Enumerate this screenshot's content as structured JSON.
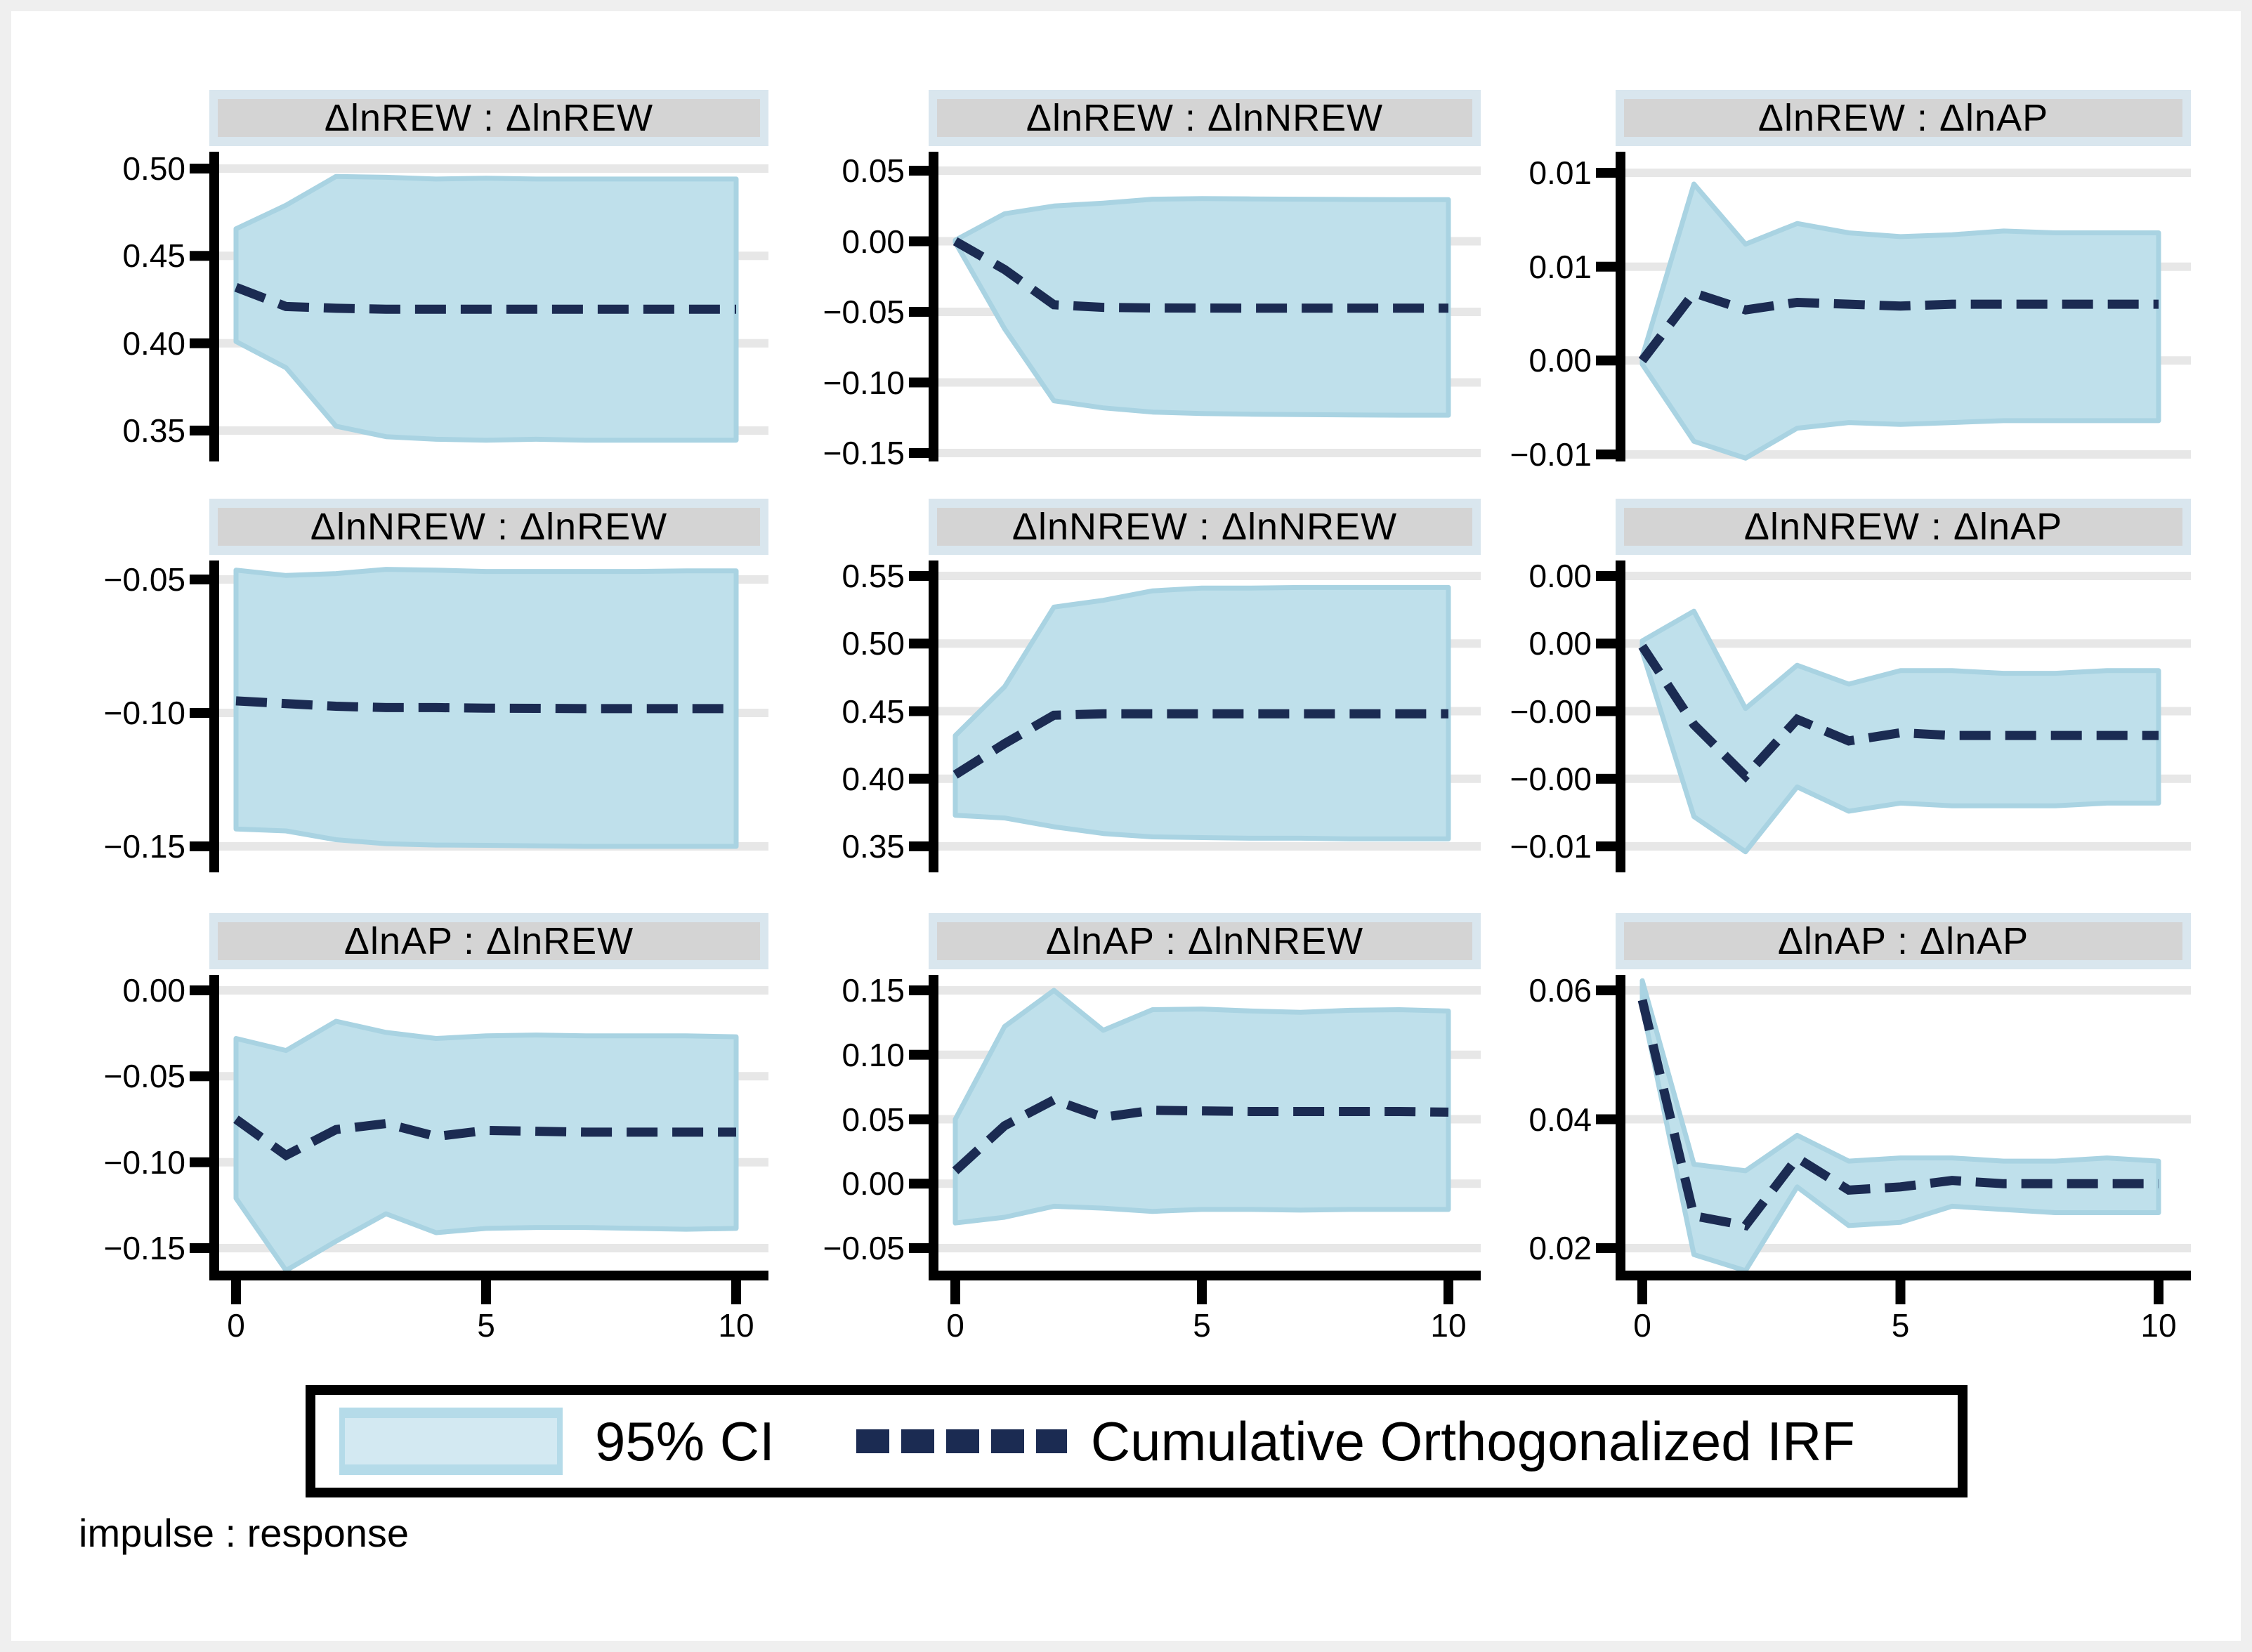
{
  "note": "impulse : response",
  "legend": {
    "ci_label": "95% CI",
    "irf_label": "Cumulative Orthogonalized IRF"
  },
  "colors": {
    "band_fill": "#bfe0eb",
    "band_edge": "#a9d3e2",
    "irf_line": "#1b2b52",
    "header_bg": "#d9e6ee",
    "title_bg": "#d4d4d4",
    "gridline": "#e7e7e7",
    "axis": "#000000",
    "frame": "#efefef",
    "swatch_outer": "#b5dbe9",
    "swatch_inner": "#d3e9f2"
  },
  "xticks": [
    {
      "label": "0",
      "value": 0
    },
    {
      "label": "5",
      "value": 5
    },
    {
      "label": "10",
      "value": 10
    }
  ],
  "xlim": [
    0,
    10
  ],
  "chart_data": [
    {
      "type": "line",
      "title": "ΔlnREW : ΔlnREW",
      "impulse": "ΔlnREW",
      "response": "ΔlnREW",
      "x": [
        0,
        1,
        2,
        3,
        4,
        5,
        6,
        7,
        8,
        9,
        10
      ],
      "yticks": [
        {
          "label": "0.50",
          "value": 0.5
        },
        {
          "label": "0.45",
          "value": 0.45
        },
        {
          "label": "0.40",
          "value": 0.4
        },
        {
          "label": "0.35",
          "value": 0.35
        }
      ],
      "series": [
        {
          "name": "Cumulative Orthogonalized IRF",
          "values": [
            0.432,
            0.421,
            0.42,
            0.4195,
            0.4195,
            0.4195,
            0.4195,
            0.4195,
            0.4195,
            0.4195,
            0.4195
          ]
        },
        {
          "name": "95% CI upper",
          "values": [
            0.4655,
            0.479,
            0.4955,
            0.495,
            0.494,
            0.4945,
            0.494,
            0.494,
            0.494,
            0.494,
            0.494
          ]
        },
        {
          "name": "95% CI lower",
          "values": [
            0.401,
            0.386,
            0.3525,
            0.3465,
            0.345,
            0.3445,
            0.345,
            0.3445,
            0.3445,
            0.3445,
            0.3445
          ]
        }
      ]
    },
    {
      "type": "line",
      "title": "ΔlnREW : ΔlnNREW",
      "impulse": "ΔlnREW",
      "response": "ΔlnNREW",
      "x": [
        0,
        1,
        2,
        3,
        4,
        5,
        6,
        7,
        8,
        9,
        10
      ],
      "yticks": [
        {
          "label": "0.05",
          "value": 0.05
        },
        {
          "label": "0.00",
          "value": 0.0
        },
        {
          "label": "−0.05",
          "value": -0.05
        },
        {
          "label": "−0.10",
          "value": -0.1
        },
        {
          "label": "−0.15",
          "value": -0.15
        }
      ],
      "series": [
        {
          "name": "Cumulative Orthogonalized IRF",
          "values": [
            0.0,
            -0.02,
            -0.045,
            -0.0468,
            -0.0472,
            -0.0473,
            -0.0474,
            -0.0474,
            -0.0474,
            -0.0474,
            -0.0474
          ]
        },
        {
          "name": "95% CI upper",
          "values": [
            0.0008,
            0.0195,
            0.025,
            0.027,
            0.0298,
            0.0302,
            0.03,
            0.0298,
            0.0296,
            0.0295,
            0.0295
          ]
        },
        {
          "name": "95% CI lower",
          "values": [
            -0.0008,
            -0.062,
            -0.113,
            -0.118,
            -0.121,
            -0.122,
            -0.1225,
            -0.1228,
            -0.123,
            -0.1232,
            -0.1232
          ]
        }
      ]
    },
    {
      "type": "line",
      "title": "ΔlnREW : ΔlnAP",
      "impulse": "ΔlnREW",
      "response": "ΔlnAP",
      "x": [
        0,
        1,
        2,
        3,
        4,
        5,
        6,
        7,
        8,
        9,
        10
      ],
      "yticks": [
        {
          "label": "0.01",
          "value": 0.01
        },
        {
          "label": "0.01",
          "value": 0.005
        },
        {
          "label": "0.00",
          "value": 0.0
        },
        {
          "label": "−0.01",
          "value": -0.005
        }
      ],
      "series": [
        {
          "name": "Cumulative Orthogonalized IRF",
          "values": [
            0.0,
            0.0036,
            0.0027,
            0.0031,
            0.003,
            0.0029,
            0.003,
            0.003,
            0.003,
            0.003,
            0.003
          ]
        },
        {
          "name": "95% CI upper",
          "values": [
            0.0002,
            0.0094,
            0.0062,
            0.0073,
            0.0068,
            0.0066,
            0.0067,
            0.0069,
            0.0068,
            0.0068,
            0.0068
          ]
        },
        {
          "name": "95% CI lower",
          "values": [
            -0.0002,
            -0.0043,
            -0.0052,
            -0.0036,
            -0.0033,
            -0.0034,
            -0.0033,
            -0.0032,
            -0.0032,
            -0.0032,
            -0.0032
          ]
        }
      ]
    },
    {
      "type": "line",
      "title": "ΔlnNREW : ΔlnREW",
      "impulse": "ΔlnNREW",
      "response": "ΔlnREW",
      "x": [
        0,
        1,
        2,
        3,
        4,
        5,
        6,
        7,
        8,
        9,
        10
      ],
      "yticks": [
        {
          "label": "−0.05",
          "value": -0.05
        },
        {
          "label": "−0.10",
          "value": -0.1
        },
        {
          "label": "−0.15",
          "value": -0.15
        }
      ],
      "series": [
        {
          "name": "Cumulative Orthogonalized IRF",
          "values": [
            -0.0955,
            -0.0965,
            -0.0975,
            -0.098,
            -0.098,
            -0.0982,
            -0.0983,
            -0.0984,
            -0.0984,
            -0.0984,
            -0.0984
          ]
        },
        {
          "name": "95% CI upper",
          "values": [
            -0.0465,
            -0.0485,
            -0.0478,
            -0.0462,
            -0.0465,
            -0.047,
            -0.047,
            -0.047,
            -0.047,
            -0.0468,
            -0.0468
          ]
        },
        {
          "name": "95% CI lower",
          "values": [
            -0.1435,
            -0.1442,
            -0.1475,
            -0.149,
            -0.1495,
            -0.1496,
            -0.1498,
            -0.15,
            -0.15,
            -0.15,
            -0.15
          ]
        }
      ]
    },
    {
      "type": "line",
      "title": "ΔlnNREW : ΔlnNREW",
      "impulse": "ΔlnNREW",
      "response": "ΔlnNREW",
      "x": [
        0,
        1,
        2,
        3,
        4,
        5,
        6,
        7,
        8,
        9,
        10
      ],
      "yticks": [
        {
          "label": "0.55",
          "value": 0.55
        },
        {
          "label": "0.50",
          "value": 0.5
        },
        {
          "label": "0.45",
          "value": 0.45
        },
        {
          "label": "0.40",
          "value": 0.4
        },
        {
          "label": "0.35",
          "value": 0.35
        }
      ],
      "series": [
        {
          "name": "Cumulative Orthogonalized IRF",
          "values": [
            0.403,
            0.426,
            0.447,
            0.448,
            0.448,
            0.448,
            0.448,
            0.448,
            0.448,
            0.448,
            0.448
          ]
        },
        {
          "name": "95% CI upper",
          "values": [
            0.432,
            0.468,
            0.527,
            0.532,
            0.539,
            0.541,
            0.541,
            0.5415,
            0.5415,
            0.5415,
            0.5415
          ]
        },
        {
          "name": "95% CI lower",
          "values": [
            0.373,
            0.371,
            0.3645,
            0.3595,
            0.357,
            0.3565,
            0.356,
            0.356,
            0.3555,
            0.3555,
            0.3555
          ]
        }
      ]
    },
    {
      "type": "line",
      "title": "ΔlnNREW : ΔlnAP",
      "impulse": "ΔlnNREW",
      "response": "ΔlnAP",
      "x": [
        0,
        1,
        2,
        3,
        4,
        5,
        6,
        7,
        8,
        9,
        10
      ],
      "yticks": [
        {
          "label": "0.00",
          "value": 0.0025
        },
        {
          "label": "0.00",
          "value": 0.0
        },
        {
          "label": "−0.00",
          "value": -0.0025
        },
        {
          "label": "−0.00",
          "value": -0.005
        },
        {
          "label": "−0.01",
          "value": -0.0075
        }
      ],
      "series": [
        {
          "name": "Cumulative Orthogonalized IRF",
          "values": [
            -0.0001,
            -0.003,
            -0.0049,
            -0.0028,
            -0.0036,
            -0.0033,
            -0.0034,
            -0.0034,
            -0.0034,
            -0.0034,
            -0.0034
          ]
        },
        {
          "name": "95% CI upper",
          "values": [
            0.0001,
            0.0012,
            -0.0024,
            -0.0008,
            -0.0015,
            -0.001,
            -0.001,
            -0.0011,
            -0.0011,
            -0.001,
            -0.001
          ]
        },
        {
          "name": "95% CI lower",
          "values": [
            -0.0003,
            -0.0064,
            -0.0077,
            -0.0053,
            -0.0062,
            -0.0059,
            -0.006,
            -0.006,
            -0.006,
            -0.0059,
            -0.0059
          ]
        }
      ]
    },
    {
      "type": "line",
      "title": "ΔlnAP : ΔlnREW",
      "impulse": "ΔlnAP",
      "response": "ΔlnREW",
      "x": [
        0,
        1,
        2,
        3,
        4,
        5,
        6,
        7,
        8,
        9,
        10
      ],
      "yticks": [
        {
          "label": "0.00",
          "value": 0.0
        },
        {
          "label": "−0.05",
          "value": -0.05
        },
        {
          "label": "−0.10",
          "value": -0.1
        },
        {
          "label": "−0.15",
          "value": -0.15
        }
      ],
      "series": [
        {
          "name": "Cumulative Orthogonalized IRF",
          "values": [
            -0.075,
            -0.096,
            -0.081,
            -0.0775,
            -0.085,
            -0.0815,
            -0.082,
            -0.0825,
            -0.0825,
            -0.0825,
            -0.0825
          ]
        },
        {
          "name": "95% CI upper",
          "values": [
            -0.028,
            -0.035,
            -0.018,
            -0.0245,
            -0.028,
            -0.0265,
            -0.026,
            -0.0265,
            -0.0265,
            -0.0265,
            -0.027
          ]
        },
        {
          "name": "95% CI lower",
          "values": [
            -0.121,
            -0.163,
            -0.146,
            -0.13,
            -0.141,
            -0.1385,
            -0.138,
            -0.138,
            -0.1385,
            -0.139,
            -0.1385
          ]
        }
      ]
    },
    {
      "type": "line",
      "title": "ΔlnAP : ΔlnNREW",
      "impulse": "ΔlnAP",
      "response": "ΔlnNREW",
      "x": [
        0,
        1,
        2,
        3,
        4,
        5,
        6,
        7,
        8,
        9,
        10
      ],
      "yticks": [
        {
          "label": "0.15",
          "value": 0.15
        },
        {
          "label": "0.10",
          "value": 0.1
        },
        {
          "label": "0.05",
          "value": 0.05
        },
        {
          "label": "0.00",
          "value": 0.0
        },
        {
          "label": "−0.05",
          "value": -0.05
        }
      ],
      "series": [
        {
          "name": "Cumulative Orthogonalized IRF",
          "values": [
            0.01,
            0.045,
            0.065,
            0.0515,
            0.057,
            0.0565,
            0.056,
            0.056,
            0.056,
            0.056,
            0.0555
          ]
        },
        {
          "name": "95% CI upper",
          "values": [
            0.05,
            0.122,
            0.15,
            0.119,
            0.135,
            0.1355,
            0.134,
            0.133,
            0.1345,
            0.135,
            0.134
          ]
        },
        {
          "name": "95% CI lower",
          "values": [
            -0.0305,
            -0.026,
            -0.0175,
            -0.019,
            -0.0215,
            -0.02,
            -0.02,
            -0.0205,
            -0.02,
            -0.02,
            -0.02
          ]
        }
      ]
    },
    {
      "type": "line",
      "title": "ΔlnAP : ΔlnAP",
      "impulse": "ΔlnAP",
      "response": "ΔlnAP",
      "x": [
        0,
        1,
        2,
        3,
        4,
        5,
        6,
        7,
        8,
        9,
        10
      ],
      "yticks": [
        {
          "label": "0.06",
          "value": 0.06
        },
        {
          "label": "0.04",
          "value": 0.04
        },
        {
          "label": "0.02",
          "value": 0.02
        }
      ],
      "series": [
        {
          "name": "Cumulative Orthogonalized IRF",
          "values": [
            0.0585,
            0.025,
            0.0235,
            0.034,
            0.029,
            0.0295,
            0.0305,
            0.03,
            0.03,
            0.03,
            0.03
          ]
        },
        {
          "name": "95% CI upper",
          "values": [
            0.0615,
            0.033,
            0.032,
            0.0375,
            0.0335,
            0.034,
            0.034,
            0.0335,
            0.0335,
            0.034,
            0.0335
          ]
        },
        {
          "name": "95% CI lower",
          "values": [
            0.0575,
            0.019,
            0.0165,
            0.0295,
            0.0235,
            0.024,
            0.0265,
            0.026,
            0.0255,
            0.0255,
            0.0255
          ]
        }
      ]
    }
  ]
}
